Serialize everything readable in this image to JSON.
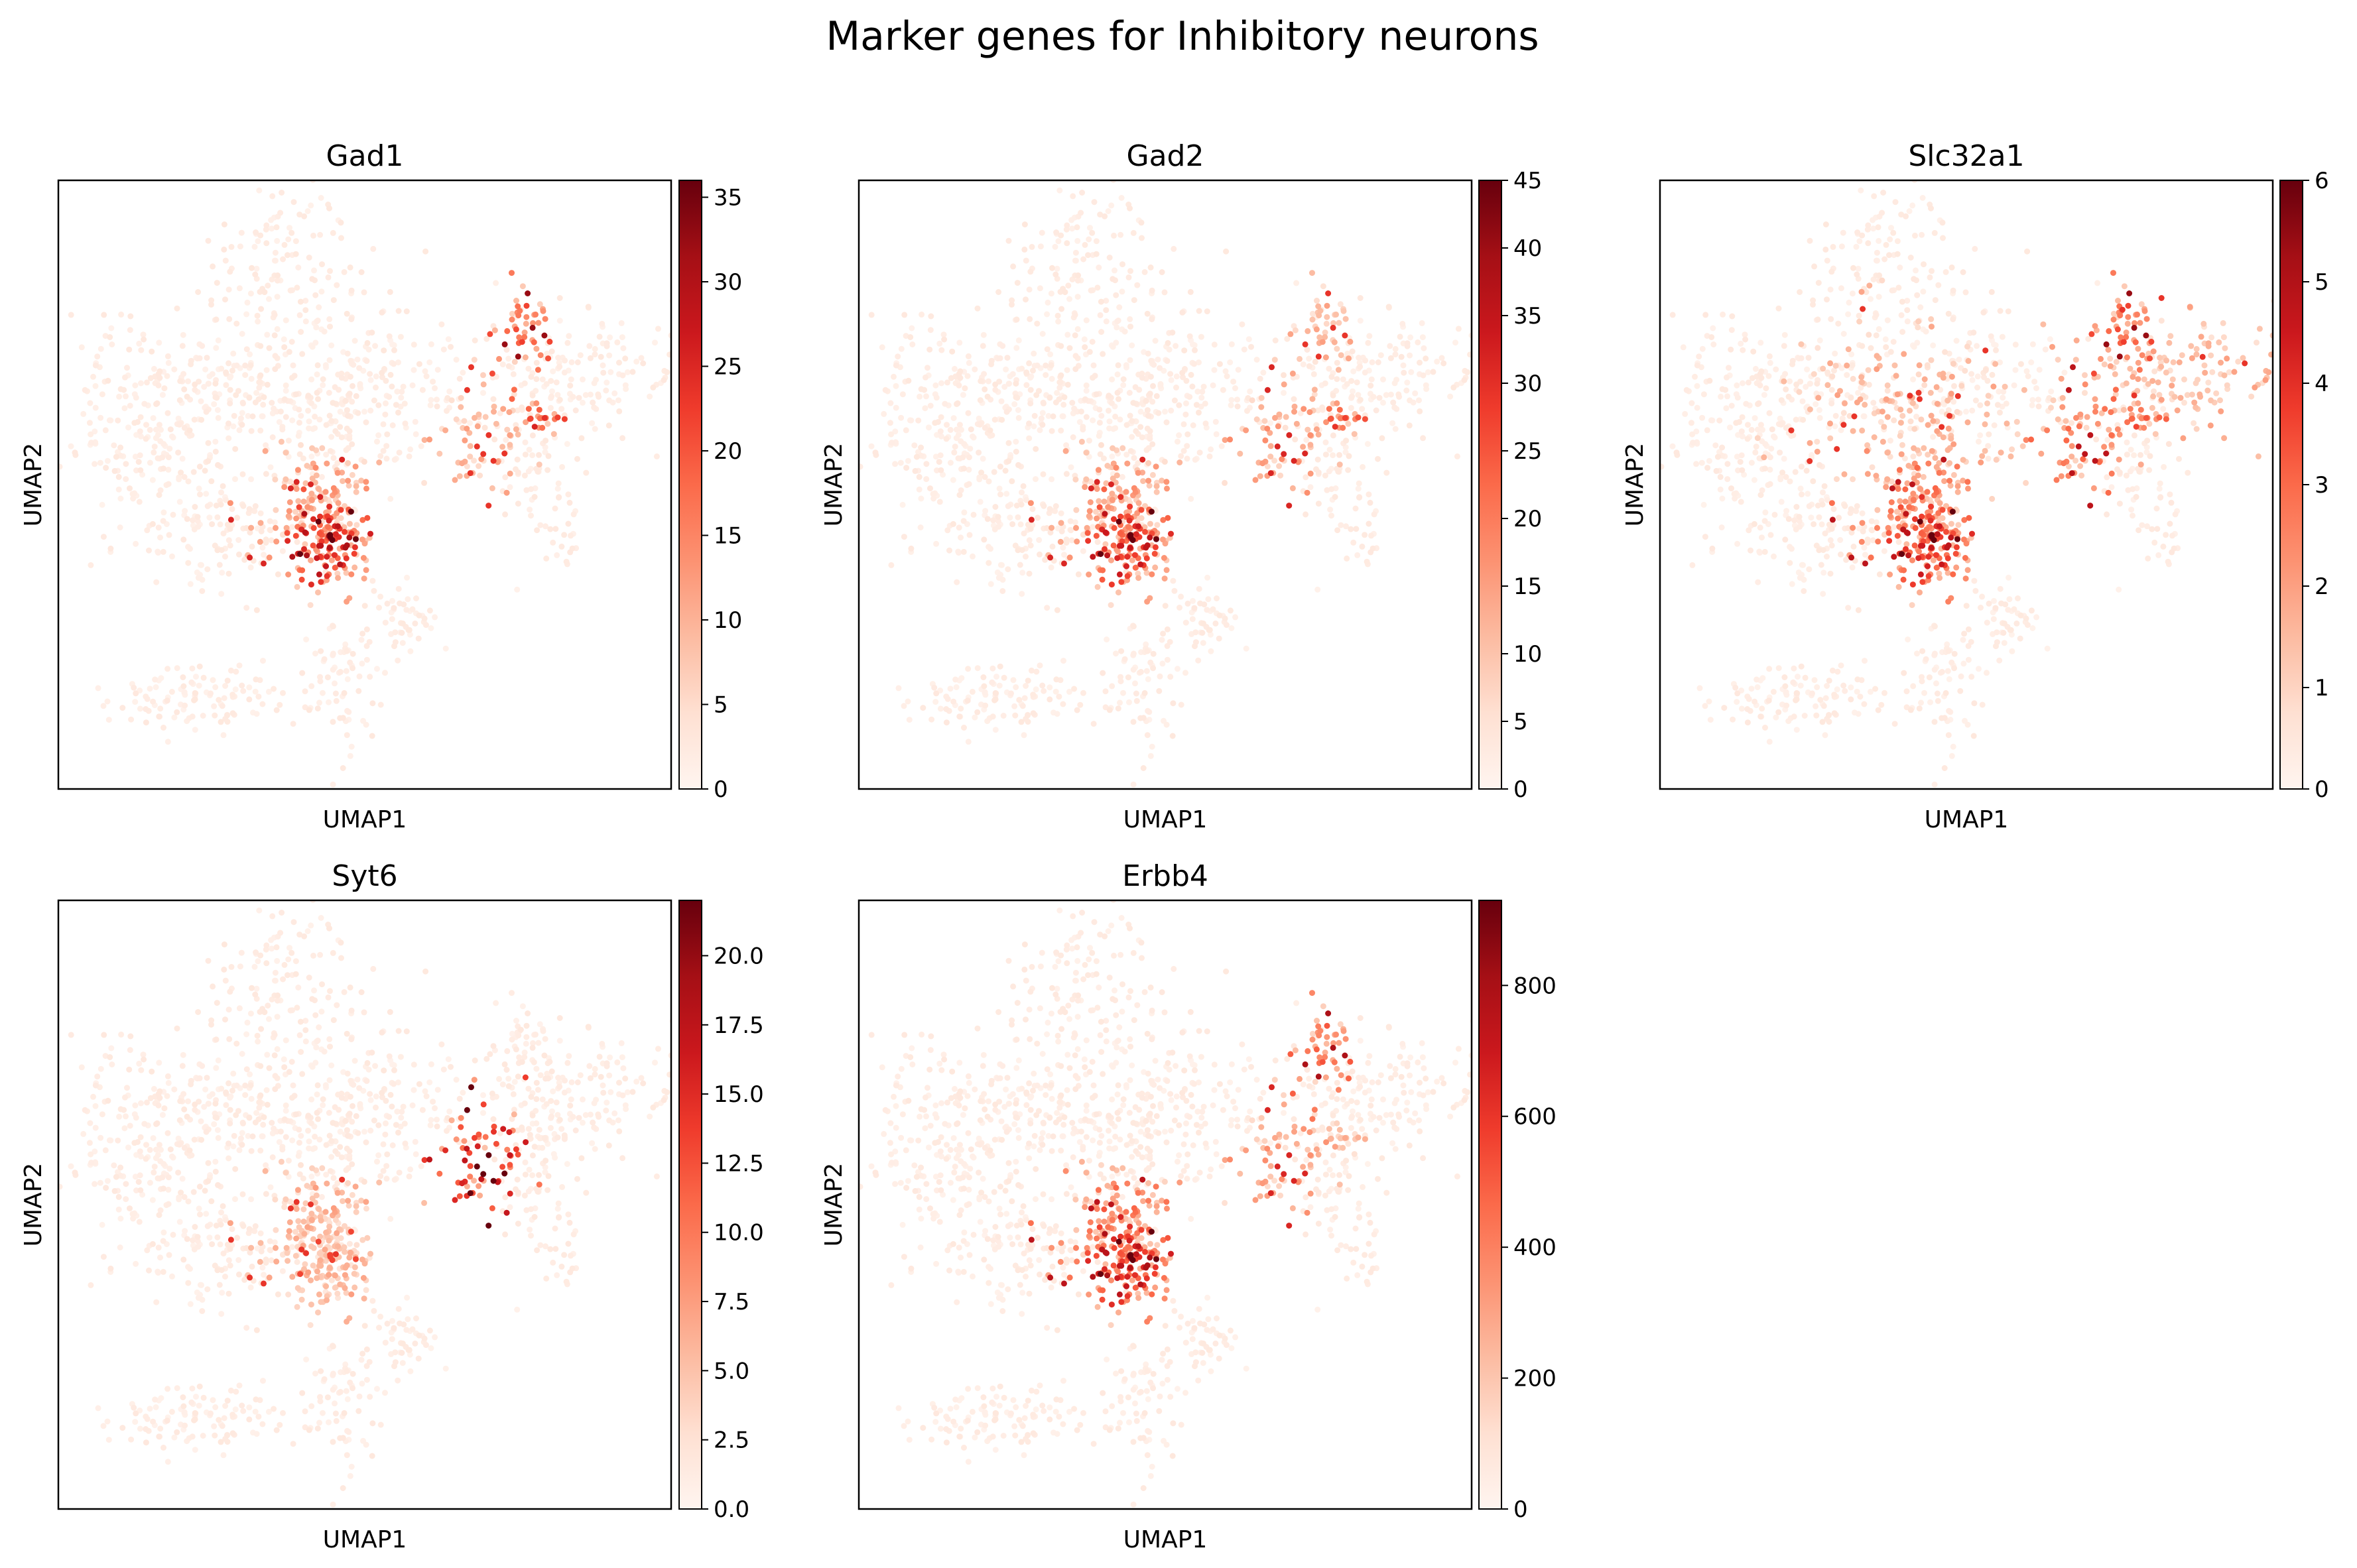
{
  "figure": {
    "title": "Marker genes for Inhibitory neurons",
    "colormap": {
      "name": "Reds",
      "stops": [
        "#fff5f0",
        "#fee0d2",
        "#fcbba1",
        "#fc9272",
        "#fb6a4a",
        "#ef3b2c",
        "#cb181d",
        "#a50f15",
        "#67000d"
      ]
    },
    "axis_color": "#000000",
    "background": "#ffffff"
  },
  "embedding": {
    "type": "scatter",
    "xlabel": "UMAP1",
    "ylabel": "UMAP2",
    "xlim": [
      -10,
      10
    ],
    "ylim": [
      -10,
      10
    ],
    "regions": [
      {
        "name": "top-stem",
        "cx": -2.5,
        "cy": 7.5,
        "sx": 1.2,
        "sy": 1.6,
        "n": 120
      },
      {
        "name": "upper-left-lobe",
        "cx": -5.5,
        "cy": 3.5,
        "sx": 2.0,
        "sy": 1.2,
        "n": 180
      },
      {
        "name": "left-arm",
        "cx": -7.5,
        "cy": 1.2,
        "sx": 1.3,
        "sy": 0.8,
        "n": 90
      },
      {
        "name": "mid-upper",
        "cx": -2.0,
        "cy": 2.5,
        "sx": 1.8,
        "sy": 1.4,
        "n": 200
      },
      {
        "name": "mid-left-lower",
        "cx": -5.0,
        "cy": -1.5,
        "sx": 1.6,
        "sy": 1.0,
        "n": 140
      },
      {
        "name": "center",
        "cx": -1.6,
        "cy": -0.8,
        "sx": 1.0,
        "sy": 1.2,
        "n": 160
      },
      {
        "name": "center-right-lobe",
        "cx": 0.8,
        "cy": 3.5,
        "sx": 1.4,
        "sy": 1.3,
        "n": 110
      },
      {
        "name": "upper-right-arm",
        "cx": 3.8,
        "cy": 1.8,
        "sx": 0.8,
        "sy": 1.0,
        "n": 70
      },
      {
        "name": "far-right-lobe",
        "cx": 7.0,
        "cy": 3.5,
        "sx": 1.8,
        "sy": 1.0,
        "n": 150
      },
      {
        "name": "right-lower-tail",
        "cx": 5.5,
        "cy": 0.5,
        "sx": 0.6,
        "sy": 1.3,
        "n": 60
      },
      {
        "name": "bottom-left-blob",
        "cx": -5.5,
        "cy": -7.0,
        "sx": 1.5,
        "sy": 0.5,
        "n": 110
      },
      {
        "name": "bottom-center",
        "cx": -0.8,
        "cy": -6.5,
        "sx": 0.6,
        "sy": 1.2,
        "n": 70
      },
      {
        "name": "right-middle",
        "cx": 1.2,
        "cy": -4.5,
        "sx": 0.6,
        "sy": 0.8,
        "n": 50
      },
      {
        "name": "right-small",
        "cx": 6.5,
        "cy": -1.8,
        "sx": 0.3,
        "sy": 0.6,
        "n": 20
      },
      {
        "name": "inhib-core",
        "cx": -1.2,
        "cy": -1.8,
        "sx": 0.7,
        "sy": 0.6,
        "n": 110
      },
      {
        "name": "upper-right-hotspot",
        "cx": 5.2,
        "cy": 5.2,
        "sx": 0.6,
        "sy": 0.9,
        "n": 50
      },
      {
        "name": "right-dot-cluster",
        "cx": 5.9,
        "cy": 2.2,
        "sx": 0.35,
        "sy": 0.3,
        "n": 20
      }
    ]
  },
  "chart_data": [
    {
      "type": "scatter",
      "title": "Gad1",
      "xlabel": "UMAP1",
      "ylabel": "UMAP2",
      "colorbar": {
        "min": 0,
        "max": 36,
        "ticks": [
          "0",
          "5",
          "10",
          "15",
          "20",
          "25",
          "30",
          "35"
        ],
        "tick_values": [
          0,
          5,
          10,
          15,
          20,
          25,
          30,
          35
        ]
      },
      "hotspots": [
        {
          "region": "inhib-core",
          "level": 0.75
        },
        {
          "region": "center",
          "level": 0.35
        },
        {
          "region": "upper-right-hotspot",
          "level": 0.55
        },
        {
          "region": "right-dot-cluster",
          "level": 0.65
        },
        {
          "region": "upper-right-arm",
          "level": 0.3
        }
      ]
    },
    {
      "type": "scatter",
      "title": "Gad2",
      "xlabel": "UMAP1",
      "ylabel": "UMAP2",
      "colorbar": {
        "min": 0,
        "max": 45,
        "ticks": [
          "0",
          "5",
          "10",
          "15",
          "20",
          "25",
          "30",
          "35",
          "40",
          "45"
        ],
        "tick_values": [
          0,
          5,
          10,
          15,
          20,
          25,
          30,
          35,
          40,
          45
        ]
      },
      "hotspots": [
        {
          "region": "inhib-core",
          "level": 0.7
        },
        {
          "region": "center",
          "level": 0.35
        },
        {
          "region": "upper-right-hotspot",
          "level": 0.3
        },
        {
          "region": "right-dot-cluster",
          "level": 0.6
        },
        {
          "region": "upper-right-arm",
          "level": 0.35
        }
      ]
    },
    {
      "type": "scatter",
      "title": "Slc32a1",
      "xlabel": "UMAP1",
      "ylabel": "UMAP2",
      "colorbar": {
        "min": 0,
        "max": 6,
        "ticks": [
          "0",
          "1",
          "2",
          "3",
          "4",
          "5",
          "6"
        ],
        "tick_values": [
          0,
          1,
          2,
          3,
          4,
          5,
          6
        ]
      },
      "hotspots": [
        {
          "region": "inhib-core",
          "level": 0.7
        },
        {
          "region": "center",
          "level": 0.45
        },
        {
          "region": "mid-upper",
          "level": 0.3
        },
        {
          "region": "upper-right-hotspot",
          "level": 0.55
        },
        {
          "region": "far-right-lobe",
          "level": 0.3
        },
        {
          "region": "right-dot-cluster",
          "level": 0.55
        },
        {
          "region": "upper-right-arm",
          "level": 0.45
        }
      ]
    },
    {
      "type": "scatter",
      "title": "Syt6",
      "xlabel": "UMAP1",
      "ylabel": "UMAP2",
      "colorbar": {
        "min": 0,
        "max": 22,
        "ticks": [
          "0.0",
          "2.5",
          "5.0",
          "7.5",
          "10.0",
          "12.5",
          "15.0",
          "17.5",
          "20.0"
        ],
        "tick_values": [
          0,
          2.5,
          5,
          7.5,
          10,
          12.5,
          15,
          17.5,
          20
        ]
      },
      "hotspots": [
        {
          "region": "upper-right-arm",
          "level": 0.7
        },
        {
          "region": "center",
          "level": 0.3
        },
        {
          "region": "inhib-core",
          "level": 0.25
        }
      ]
    },
    {
      "type": "scatter",
      "title": "Erbb4",
      "xlabel": "UMAP1",
      "ylabel": "UMAP2",
      "colorbar": {
        "min": 0,
        "max": 930,
        "ticks": [
          "0",
          "200",
          "400",
          "600",
          "800"
        ],
        "tick_values": [
          0,
          200,
          400,
          600,
          800
        ]
      },
      "hotspots": [
        {
          "region": "inhib-core",
          "level": 0.75
        },
        {
          "region": "center",
          "level": 0.45
        },
        {
          "region": "upper-right-hotspot",
          "level": 0.5
        },
        {
          "region": "upper-right-arm",
          "level": 0.35
        },
        {
          "region": "right-dot-cluster",
          "level": 0.3
        }
      ]
    }
  ]
}
